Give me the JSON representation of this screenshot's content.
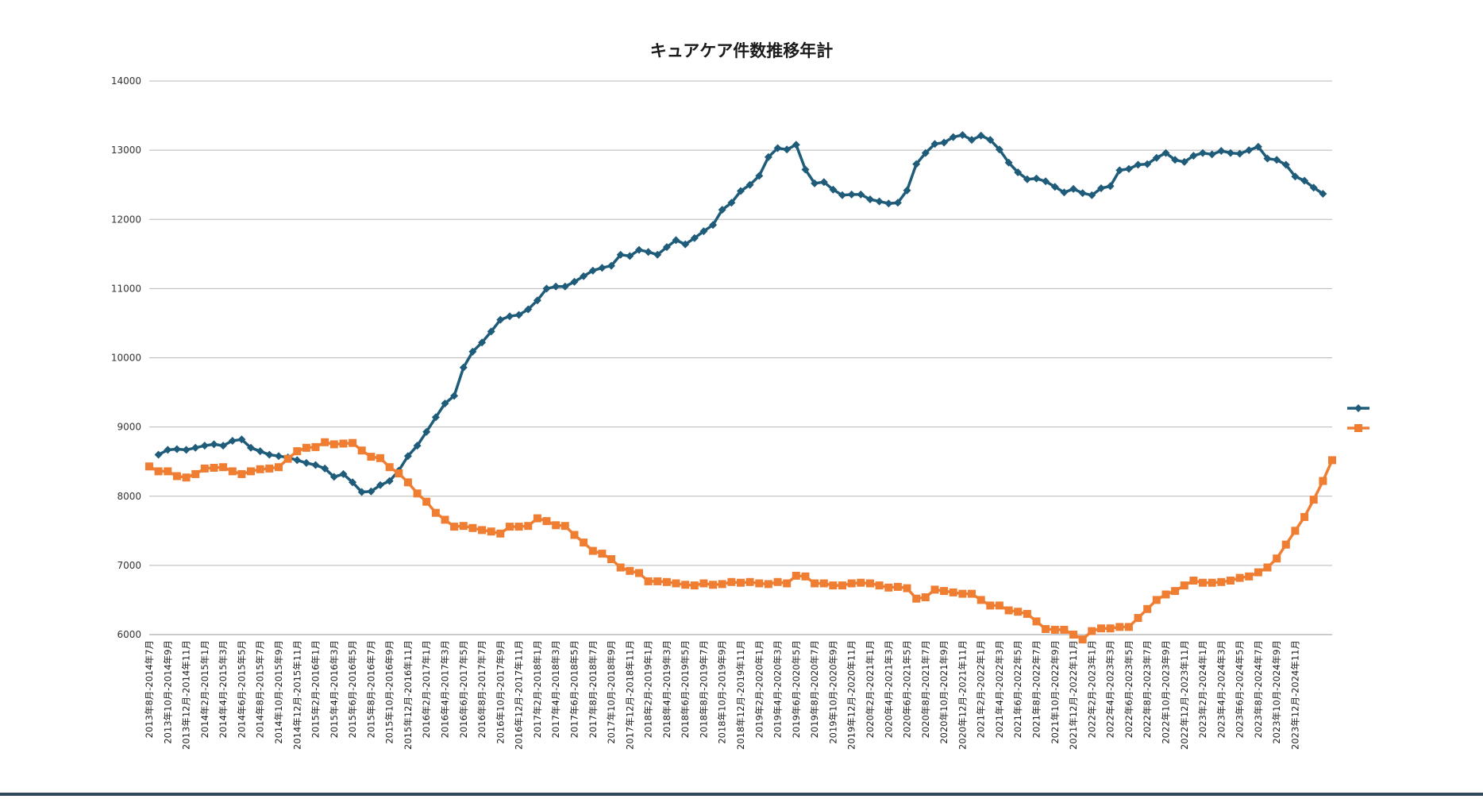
{
  "chart_data": {
    "type": "line",
    "title": "キュアケア件数推移年計",
    "xlabel": "",
    "ylabel": "",
    "ylim": [
      6000,
      14000
    ],
    "yticks": [
      6000,
      7000,
      8000,
      9000,
      10000,
      11000,
      12000,
      13000,
      14000
    ],
    "grid": true,
    "legend_position": "right",
    "tick_labels": [
      "2013年8月-2014年7月",
      "2013年10月-2014年9月",
      "2013年12月-2014年11月",
      "2014年2月-2015年1月",
      "2014年4月-2015年3月",
      "2014年6月-2015年5月",
      "2014年8月-2015年7月",
      "2014年10月-2015年9月",
      "2014年12月-2015年11月",
      "2015年2月-2016年1月",
      "2015年4月-2016年3月",
      "2015年6月-2016年5月",
      "2015年8月-2016年7月",
      "2015年10月-2016年9月",
      "2015年12月-2016年11月",
      "2016年2月-2017年1月",
      "2016年4月-2017年3月",
      "2016年6月-2017年5月",
      "2016年8月-2017年7月",
      "2016年10月-2017年9月",
      "2016年12月-2017年11月",
      "2017年2月-2018年1月",
      "2017年4月-2018年3月",
      "2017年6月-2018年5月",
      "2017年8月-2018年7月",
      "2017年10月-2018年9月",
      "2017年12月-2018年11月",
      "2018年2月-2019年1月",
      "2018年4月-2019年3月",
      "2018年6月-2019年5月",
      "2018年8月-2019年7月",
      "2018年10月-2019年9月",
      "2018年12月-2019年11月",
      "2019年2月-2020年1月",
      "2019年4月-2020年3月",
      "2019年6月-2020年5月",
      "2019年8月-2020年7月",
      "2019年10月-2020年9月",
      "2019年12月-2020年11月",
      "2020年2月-2021年1月",
      "2020年4月-2021年3月",
      "2020年6月-2021年5月",
      "2020年8月-2021年7月",
      "2020年10月-2021年9月",
      "2020年12月-2021年11月",
      "2021年2月-2022年1月",
      "2021年4月-2022年3月",
      "2021年6月-2022年5月",
      "2021年8月-2022年7月",
      "2021年10月-2022年9月",
      "2021年12月-2022年11月",
      "2022年2月-2023年1月",
      "2022年4月-2023年3月",
      "2022年6月-2023年5月",
      "2022年8月-2023年7月",
      "2022年10月-2023年9月",
      "2022年12月-2023年11月",
      "2023年2月-2024年1月",
      "2023年4月-2024年3月",
      "2023年6月-2024年5月",
      "2023年8月-2024年7月",
      "2023年10月-2024年9月",
      "2023年12月-2024年11月"
    ],
    "series": [
      {
        "name": "",
        "color": "#1f5c7a",
        "marker": "diamond",
        "start_index": 1,
        "values": [
          8600,
          8670,
          8680,
          8670,
          8700,
          8730,
          8750,
          8730,
          8800,
          8820,
          8700,
          8650,
          8600,
          8580,
          8560,
          8520,
          8480,
          8450,
          8400,
          8280,
          8320,
          8200,
          8060,
          8070,
          8160,
          8220,
          8370,
          8580,
          8730,
          8930,
          9140,
          9340,
          9450,
          9860,
          10090,
          10220,
          10380,
          10550,
          10600,
          10620,
          10700,
          10830,
          11000,
          11030,
          11030,
          11100,
          11180,
          11260,
          11300,
          11330,
          11490,
          11470,
          11560,
          11530,
          11490,
          11600,
          11700,
          11640,
          11730,
          11830,
          11920,
          12140,
          12240,
          12410,
          12500,
          12630,
          12900,
          13030,
          13010,
          13080,
          12720,
          12520,
          12540,
          12430,
          12350,
          12360,
          12360,
          12290,
          12260,
          12230,
          12240,
          12420,
          12800,
          12960,
          13090,
          13110,
          13190,
          13220,
          13150,
          13210,
          13150,
          13010,
          12820,
          12680,
          12580,
          12590,
          12550,
          12470,
          12390,
          12440,
          12380,
          12350,
          12450,
          12480,
          12710,
          12730,
          12790,
          12800,
          12890,
          12960,
          12860,
          12830,
          12920,
          12960,
          12940,
          12990,
          12960,
          12950,
          13000,
          13050,
          12880,
          12860,
          12790,
          12620,
          12560,
          12460,
          12370
        ]
      },
      {
        "name": "",
        "color": "#f07e32",
        "marker": "square",
        "start_index": 0,
        "values": [
          8430,
          8360,
          8360,
          8290,
          8270,
          8320,
          8400,
          8410,
          8420,
          8360,
          8320,
          8360,
          8390,
          8400,
          8420,
          8540,
          8650,
          8700,
          8710,
          8780,
          8750,
          8760,
          8770,
          8660,
          8570,
          8550,
          8420,
          8330,
          8200,
          8040,
          7920,
          7760,
          7660,
          7560,
          7570,
          7540,
          7510,
          7490,
          7460,
          7560,
          7560,
          7570,
          7680,
          7640,
          7580,
          7570,
          7440,
          7330,
          7210,
          7170,
          7090,
          6970,
          6920,
          6890,
          6770,
          6770,
          6760,
          6740,
          6720,
          6710,
          6740,
          6720,
          6730,
          6760,
          6750,
          6760,
          6740,
          6730,
          6760,
          6740,
          6850,
          6840,
          6740,
          6740,
          6710,
          6710,
          6740,
          6750,
          6740,
          6710,
          6680,
          6690,
          6670,
          6520,
          6540,
          6650,
          6630,
          6610,
          6590,
          6590,
          6500,
          6420,
          6420,
          6350,
          6330,
          6300,
          6190,
          6080,
          6070,
          6070,
          6000,
          5930,
          6050,
          6090,
          6090,
          6110,
          6110,
          6240,
          6370,
          6500,
          6580,
          6630,
          6710,
          6780,
          6750,
          6750,
          6760,
          6780,
          6820,
          6840,
          6900,
          6970,
          7100,
          7300,
          7500,
          7700,
          7950,
          8220,
          8520
        ]
      }
    ]
  }
}
